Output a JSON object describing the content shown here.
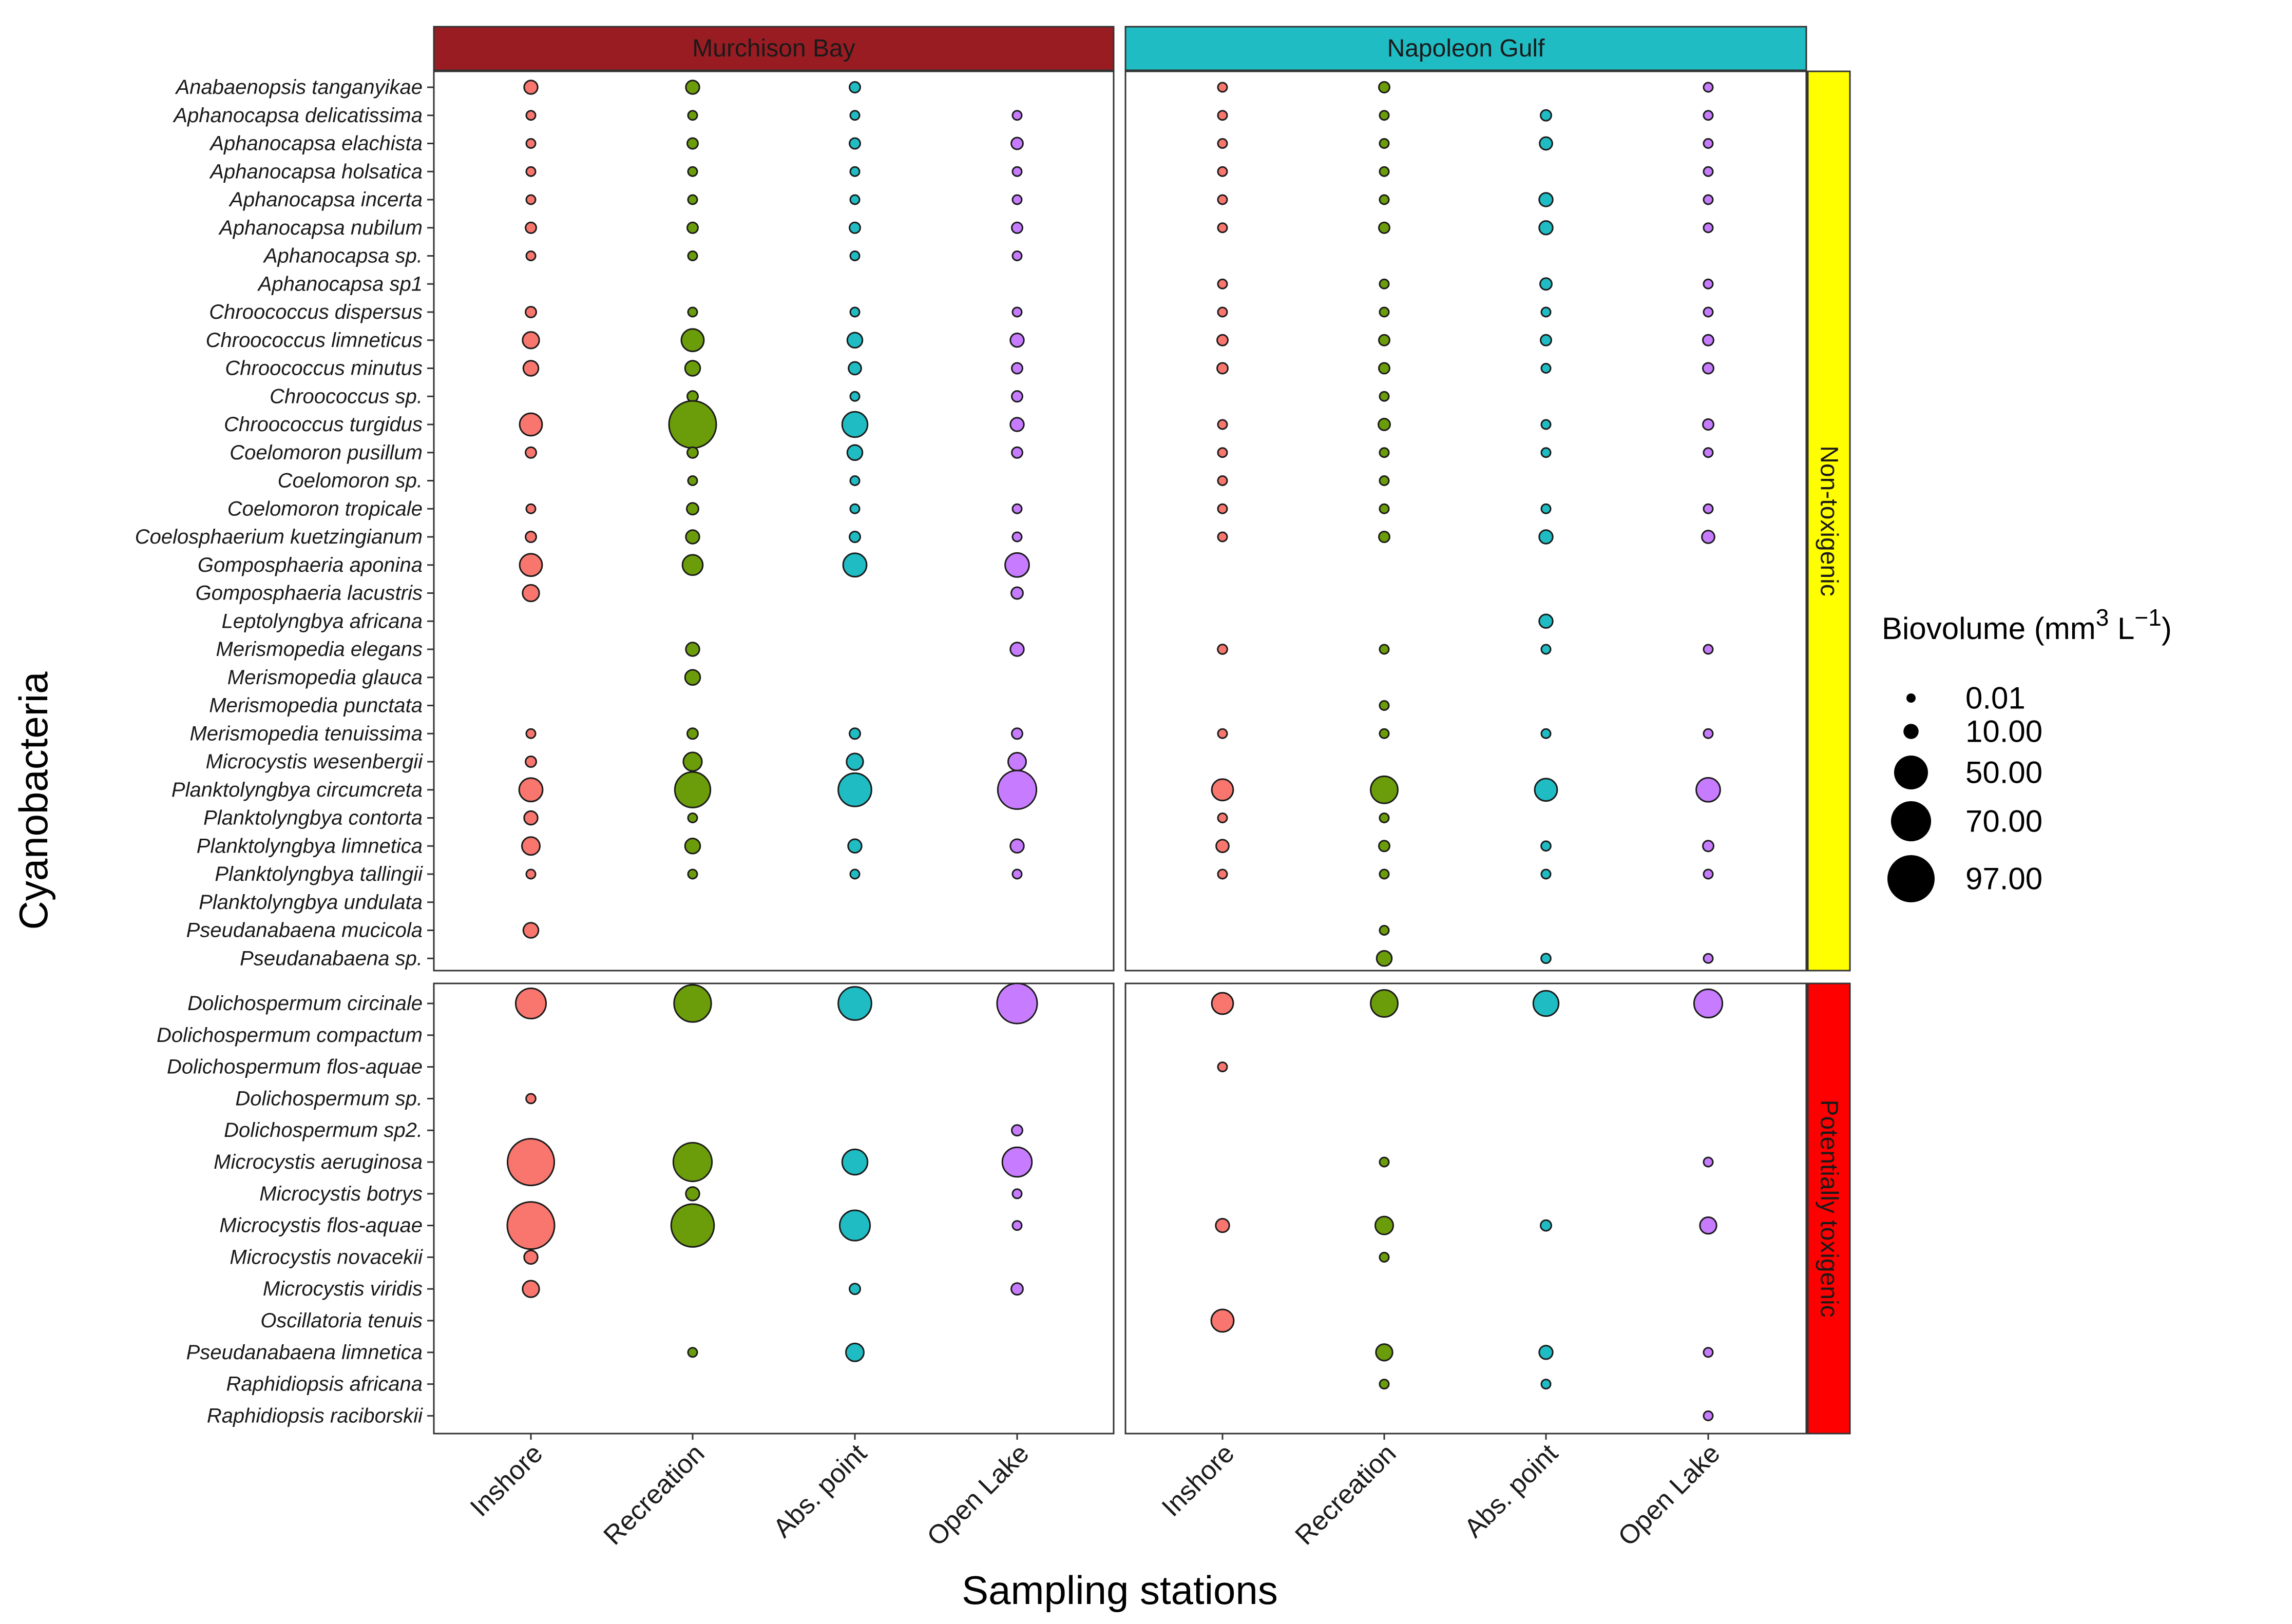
{
  "chart_data": {
    "type": "bubble-grid",
    "xlabel": "Sampling stations",
    "ylabel": "Cyanobacteria",
    "stations": [
      "Inshore",
      "Recreation",
      "Abs. point",
      "Open Lake"
    ],
    "station_colors": [
      "#f8766d",
      "#6b9c0a",
      "#1fbcc4",
      "#c77cff"
    ],
    "sites": [
      "Murchison Bay",
      "Napoleon Gulf"
    ],
    "site_colors": [
      "#991c22",
      "#1fbcc4"
    ],
    "groups": [
      {
        "name": "Non-toxigenic",
        "color": "#ffff00",
        "species": [
          "Anabaenopsis tanganyikae",
          "Aphanocapsa delicatissima",
          "Aphanocapsa elachista",
          "Aphanocapsa holsatica",
          "Aphanocapsa incerta",
          "Aphanocapsa nubilum",
          "Aphanocapsa sp.",
          "Aphanocapsa sp1",
          "Chroococcus dispersus",
          "Chroococcus limneticus",
          "Chroococcus minutus",
          "Chroococcus sp.",
          "Chroococcus turgidus",
          "Coelomoron pusillum",
          "Coelomoron sp.",
          "Coelomoron tropicale",
          "Coelosphaerium kuetzingianum",
          "Gomposphaeria  aponina",
          "Gomposphaeria  lacustris",
          "Leptolyngbya africana",
          "Merismopedia  elegans",
          "Merismopedia  glauca",
          "Merismopedia  punctata",
          "Merismopedia  tenuissima",
          "Microcystis  wesenbergii",
          "Planktolyngbya  circumcreta",
          "Planktolyngbya  contorta",
          "Planktolyngbya  limnetica",
          "Planktolyngbya  tallingii",
          "Planktolyngbya  undulata",
          "Pseudanabaena  mucicola",
          "Pseudanabaena  sp."
        ],
        "biovolume": {
          "Murchison Bay": [
            [
              8,
              8,
              5,
              null
            ],
            [
              3,
              3,
              3,
              3
            ],
            [
              3,
              5,
              5,
              6
            ],
            [
              3,
              3,
              3,
              3
            ],
            [
              3,
              3,
              3,
              3
            ],
            [
              5,
              5,
              5,
              5
            ],
            [
              3,
              3,
              3,
              3
            ],
            [
              null,
              null,
              null,
              null
            ],
            [
              5,
              3,
              3,
              3
            ],
            [
              12,
              22,
              10,
              8
            ],
            [
              10,
              10,
              7,
              5
            ],
            [
              null,
              5,
              3,
              5
            ],
            [
              22,
              97,
              28,
              8
            ],
            [
              5,
              5,
              10,
              5
            ],
            [
              null,
              3,
              3,
              null
            ],
            [
              3,
              6,
              3,
              3
            ],
            [
              5,
              8,
              5,
              3
            ],
            [
              22,
              18,
              24,
              25
            ],
            [
              12,
              null,
              null,
              6
            ],
            [
              null,
              null,
              null,
              null
            ],
            [
              null,
              8,
              null,
              8
            ],
            [
              null,
              10,
              null,
              null
            ],
            [
              null,
              null,
              null,
              null
            ],
            [
              3,
              5,
              5,
              5
            ],
            [
              5,
              15,
              12,
              14
            ],
            [
              24,
              55,
              48,
              65
            ],
            [
              8,
              3,
              null,
              null
            ],
            [
              14,
              10,
              8,
              8
            ],
            [
              2,
              2,
              2,
              2
            ],
            [
              null,
              null,
              null,
              null
            ],
            [
              10,
              null,
              null,
              null
            ],
            [
              null,
              null,
              null,
              null
            ]
          ],
          "Napoleon Gulf": [
            [
              3,
              5,
              null,
              3
            ],
            [
              3,
              3,
              5,
              3
            ],
            [
              3,
              3,
              7,
              3
            ],
            [
              3,
              3,
              null,
              3
            ],
            [
              3,
              3,
              8,
              3
            ],
            [
              3,
              5,
              8,
              3
            ],
            [
              null,
              null,
              null,
              null
            ],
            [
              3,
              3,
              6,
              3
            ],
            [
              3,
              3,
              3,
              3
            ],
            [
              5,
              5,
              5,
              5
            ],
            [
              5,
              5,
              3,
              5
            ],
            [
              null,
              3,
              null,
              null
            ],
            [
              3,
              6,
              2,
              5
            ],
            [
              3,
              3,
              2,
              3
            ],
            [
              3,
              3,
              null,
              null
            ],
            [
              3,
              3,
              3,
              3
            ],
            [
              3,
              5,
              8,
              7
            ],
            [
              null,
              null,
              null,
              null
            ],
            [
              null,
              null,
              null,
              null
            ],
            [
              null,
              null,
              8,
              null
            ],
            [
              4,
              3,
              2,
              3
            ],
            [
              null,
              null,
              null,
              null
            ],
            [
              null,
              2,
              null,
              null
            ],
            [
              3,
              3,
              3,
              3
            ],
            [
              null,
              null,
              null,
              null
            ],
            [
              20,
              32,
              22,
              25
            ],
            [
              3,
              3,
              null,
              null
            ],
            [
              7,
              5,
              4,
              5
            ],
            [
              2,
              3,
              3,
              2
            ],
            [
              null,
              null,
              null,
              null
            ],
            [
              null,
              3,
              null,
              null
            ],
            [
              null,
              10,
              4,
              3
            ]
          ]
        }
      },
      {
        "name": "Potentially toxigenic",
        "color": "#ff0000",
        "species": [
          "Dolichospermum circinale",
          "Dolichospermum compactum",
          "Dolichospermum flos-aquae",
          "Dolichospermum sp.",
          "Dolichospermum sp2.",
          "Microcystis  aeruginosa",
          "Microcystis  botrys",
          "Microcystis  flos-aquae",
          "Microcystis  novacekii",
          "Microcystis  viridis",
          "Oscillatoria  tenuis",
          "Pseudanabaena  limnetica",
          "Raphidiopsis  africana",
          "Raphidiopsis  raciborskii"
        ],
        "biovolume": {
          "Murchison Bay": [
            [
              40,
              60,
              48,
              70
            ],
            [
              null,
              null,
              null,
              null
            ],
            [
              null,
              null,
              null,
              null
            ],
            [
              4,
              null,
              null,
              null
            ],
            [
              null,
              null,
              null,
              5
            ],
            [
              95,
              65,
              28,
              38
            ],
            [
              null,
              8,
              null,
              3
            ],
            [
              97,
              80,
              40,
              3
            ],
            [
              8,
              null,
              null,
              null
            ],
            [
              12,
              null,
              5,
              6
            ],
            [
              null,
              null,
              null,
              null
            ],
            [
              null,
              3,
              14,
              null
            ],
            [
              null,
              null,
              null,
              null
            ],
            [
              null,
              null,
              null,
              null
            ]
          ],
          "Napoleon Gulf": [
            [
              20,
              32,
              28,
              35
            ],
            [
              null,
              null,
              null,
              null
            ],
            [
              3,
              null,
              null,
              null
            ],
            [
              null,
              null,
              null,
              null
            ],
            [
              null,
              null,
              null,
              null
            ],
            [
              null,
              3,
              null,
              3
            ],
            [
              null,
              null,
              null,
              null
            ],
            [
              8,
              14,
              5,
              12
            ],
            [
              null,
              3,
              null,
              null
            ],
            [
              null,
              null,
              null,
              null
            ],
            [
              22,
              null,
              null,
              null
            ],
            [
              null,
              12,
              8,
              3
            ],
            [
              null,
              3,
              3,
              null
            ],
            [
              null,
              null,
              null,
              2
            ]
          ]
        }
      }
    ],
    "legend": {
      "title": "Biovolume",
      "unit_prefix": "(mm",
      "unit_sup1": "3",
      "unit_mid": " L",
      "unit_sup2": "−1",
      "unit_suffix": ")",
      "entries": [
        "0.01",
        "10.00",
        "50.00",
        "70.00",
        "97.00"
      ],
      "values": [
        0.01,
        10,
        50,
        70,
        97
      ]
    }
  }
}
